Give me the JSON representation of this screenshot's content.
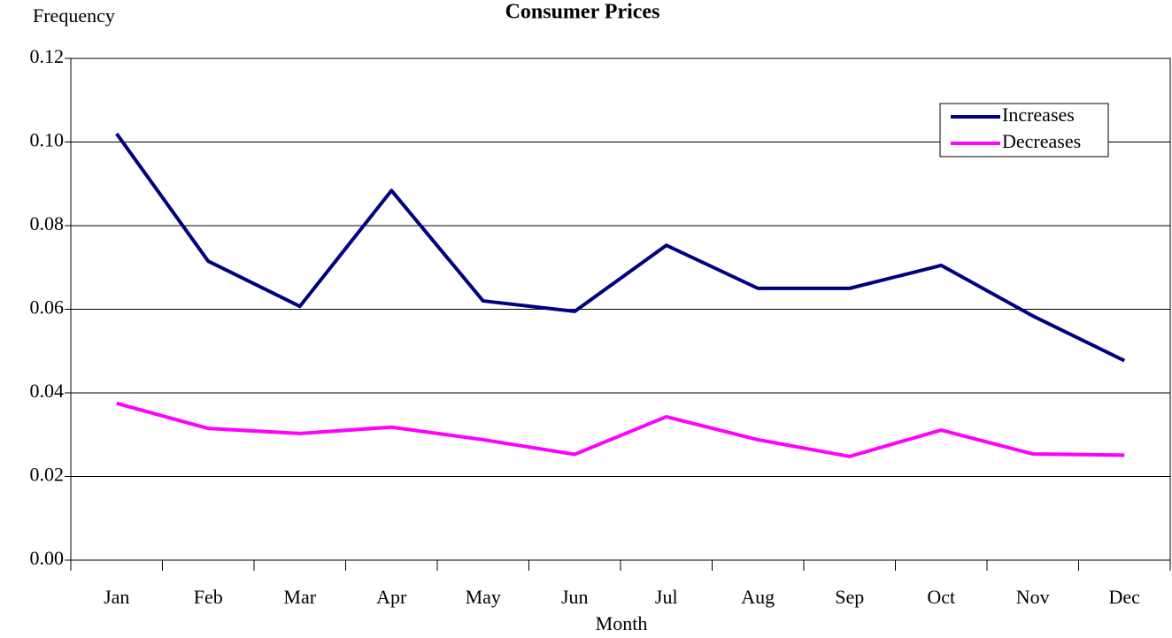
{
  "chart_data": {
    "type": "line",
    "title": "Consumer Prices",
    "y_label": "Frequency",
    "x_label": "Month",
    "categories": [
      "Jan",
      "Feb",
      "Mar",
      "Apr",
      "May",
      "Jun",
      "Jul",
      "Aug",
      "Sep",
      "Oct",
      "Nov",
      "Dec"
    ],
    "series": [
      {
        "name": "Increases",
        "color": "#000080",
        "values": [
          0.102,
          0.0715,
          0.0607,
          0.0884,
          0.062,
          0.0595,
          0.0753,
          0.065,
          0.065,
          0.0705,
          0.0584,
          0.0477
        ]
      },
      {
        "name": "Decreases",
        "color": "#ff00ff",
        "values": [
          0.0375,
          0.0315,
          0.0303,
          0.0318,
          0.0288,
          0.0253,
          0.0343,
          0.0288,
          0.0248,
          0.0311,
          0.0254,
          0.0251
        ]
      }
    ],
    "ylim": [
      0,
      0.12
    ],
    "yticks": [
      {
        "value": 0,
        "label": "0.00"
      },
      {
        "value": 0.02,
        "label": "0.02"
      },
      {
        "value": 0.04,
        "label": "0.04"
      },
      {
        "value": 0.06,
        "label": "0.06"
      },
      {
        "value": 0.08,
        "label": "0.08"
      },
      {
        "value": 0.1,
        "label": "0.10"
      },
      {
        "value": 0.12,
        "label": "0.12"
      }
    ],
    "grid": true,
    "legend": "top-right"
  }
}
